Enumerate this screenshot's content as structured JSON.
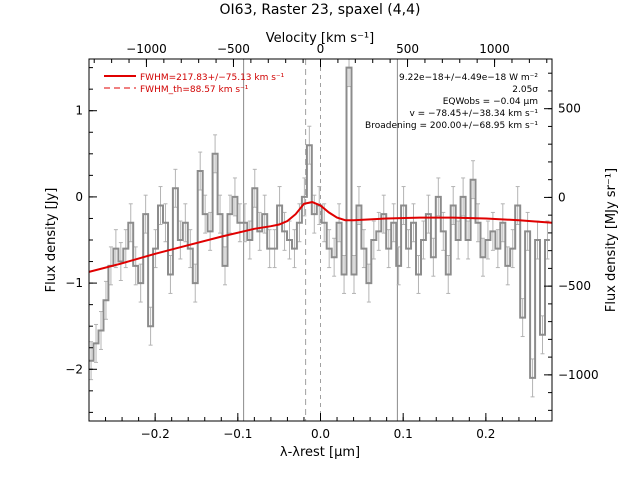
{
  "chart_data": {
    "type": "line",
    "title": "OI63, Raster 23, spaxel (4,4)",
    "xlabel": "λ-λrest [μm]",
    "ylabel": "Flux density [Jy]",
    "y2label": "Flux density [MJy sr⁻¹]",
    "top_xlabel": "Velocity [km s⁻¹]",
    "xlim": [
      -0.28,
      0.28
    ],
    "ylim": [
      -2.6,
      1.6
    ],
    "y2lim": [
      -1260,
      780
    ],
    "top_xlim": [
      -1330,
      1330
    ],
    "xticks": [
      -0.2,
      -0.1,
      0.0,
      0.1,
      0.2
    ],
    "xtick_labels": [
      "−0.2",
      "−0.1",
      "0.0",
      "0.1",
      "0.2"
    ],
    "yticks": [
      -2,
      -1,
      0,
      1
    ],
    "ytick_labels": [
      "−2",
      "−1",
      "0",
      "1"
    ],
    "y2ticks": [
      -1000,
      -500,
      0,
      500
    ],
    "y2tick_labels": [
      "−1000",
      "−500",
      "0",
      "500"
    ],
    "top_xticks": [
      -1000,
      -500,
      0,
      500,
      1000
    ],
    "top_xtick_labels": [
      "−1000",
      "−500",
      "0",
      "500",
      "1000"
    ],
    "vlines_solid": [
      -0.093,
      0.093
    ],
    "vline_dashed": -0.018,
    "vline_zero": 0.0,
    "legend": {
      "placement": "top-left",
      "entries": [
        {
          "label": "FWHM=217.83+/−75.13 km s⁻¹",
          "style": "solid",
          "color": "#e00000"
        },
        {
          "label": "FWHM_th=88.57 km s⁻¹",
          "style": "dashed",
          "color": "#e00000"
        }
      ]
    },
    "annotations": [
      "9.22e−18+/−4.49e−18 W m⁻²",
      "2.05σ",
      "EQWobs = −0.04 μm",
      "v = −78.45+/−38.34 km s⁻¹",
      "Broadening = 200.00+/−68.95 km s⁻¹"
    ],
    "series": [
      {
        "kind": "data-histogram",
        "color": "#8c8c8c",
        "x": [
          -0.2775,
          -0.2715,
          -0.2655,
          -0.2595,
          -0.2535,
          -0.2475,
          -0.2415,
          -0.2355,
          -0.2295,
          -0.2235,
          -0.2175,
          -0.2115,
          -0.2055,
          -0.1995,
          -0.1935,
          -0.1875,
          -0.1815,
          -0.1755,
          -0.1695,
          -0.1635,
          -0.1575,
          -0.1515,
          -0.1455,
          -0.1395,
          -0.1335,
          -0.1275,
          -0.1215,
          -0.1155,
          -0.1095,
          -0.1035,
          -0.0975,
          -0.0915,
          -0.0855,
          -0.0795,
          -0.0735,
          -0.0675,
          -0.0615,
          -0.0555,
          -0.0495,
          -0.0435,
          -0.0375,
          -0.0315,
          -0.0255,
          -0.0195,
          -0.0135,
          -0.0075,
          -0.0015,
          0.0045,
          0.0105,
          0.0165,
          0.0225,
          0.0285,
          0.0345,
          0.0405,
          0.0465,
          0.0525,
          0.0585,
          0.0645,
          0.0705,
          0.0765,
          0.0825,
          0.0885,
          0.0945,
          0.1005,
          0.1065,
          0.1125,
          0.1185,
          0.1245,
          0.1305,
          0.1365,
          0.1425,
          0.1485,
          0.1545,
          0.1605,
          0.1665,
          0.1725,
          0.1785,
          0.1845,
          0.1905,
          0.1965,
          0.2025,
          0.2085,
          0.2145,
          0.2205,
          0.2265,
          0.2325,
          0.2385,
          0.2445,
          0.2505,
          0.2565,
          0.2625,
          0.2685,
          0.2745
        ],
        "y": [
          -1.9,
          -1.7,
          -1.55,
          -1.2,
          -0.8,
          -0.6,
          -0.75,
          -0.6,
          -0.3,
          -0.8,
          -1.0,
          -0.2,
          -1.5,
          -0.6,
          -0.1,
          -0.3,
          -0.9,
          0.1,
          -0.5,
          -0.3,
          -0.6,
          -1.0,
          0.3,
          -0.2,
          -0.4,
          0.5,
          -0.2,
          -0.8,
          -0.2,
          0.0,
          -0.3,
          -0.3,
          -0.5,
          0.1,
          -0.4,
          -0.2,
          -0.6,
          -0.6,
          -0.1,
          -0.4,
          -0.5,
          -0.6,
          -0.3,
          0.0,
          0.6,
          -0.2,
          -0.1,
          -0.3,
          -0.6,
          -0.7,
          -0.3,
          -0.9,
          1.5,
          -0.9,
          -0.1,
          -0.6,
          -1.0,
          -0.5,
          -0.4,
          -0.2,
          -0.6,
          -0.3,
          -0.8,
          -0.1,
          -0.6,
          -0.3,
          -0.9,
          -0.5,
          -0.2,
          -0.7,
          0.0,
          -0.4,
          -0.9,
          -0.1,
          -0.5,
          0.0,
          -0.5,
          0.2,
          -0.3,
          -0.7,
          -0.5,
          -0.4,
          -0.6,
          -0.3,
          -0.8,
          -0.6,
          -0.1,
          -1.4,
          -0.4,
          -2.1,
          -0.5,
          -1.6,
          -0.5
        ],
        "yerr": 0.22
      },
      {
        "kind": "fit",
        "color": "#e00000",
        "x": [
          -0.28,
          -0.24,
          -0.2,
          -0.16,
          -0.12,
          -0.08,
          -0.06,
          -0.05,
          -0.04,
          -0.03,
          -0.02,
          -0.01,
          0.0,
          0.01,
          0.02,
          0.03,
          0.04,
          0.08,
          0.12,
          0.16,
          0.2,
          0.24,
          0.28
        ],
        "y": [
          -0.87,
          -0.77,
          -0.66,
          -0.56,
          -0.46,
          -0.37,
          -0.34,
          -0.32,
          -0.28,
          -0.2,
          -0.08,
          -0.06,
          -0.1,
          -0.18,
          -0.24,
          -0.27,
          -0.27,
          -0.25,
          -0.24,
          -0.24,
          -0.25,
          -0.27,
          -0.3
        ]
      }
    ]
  }
}
